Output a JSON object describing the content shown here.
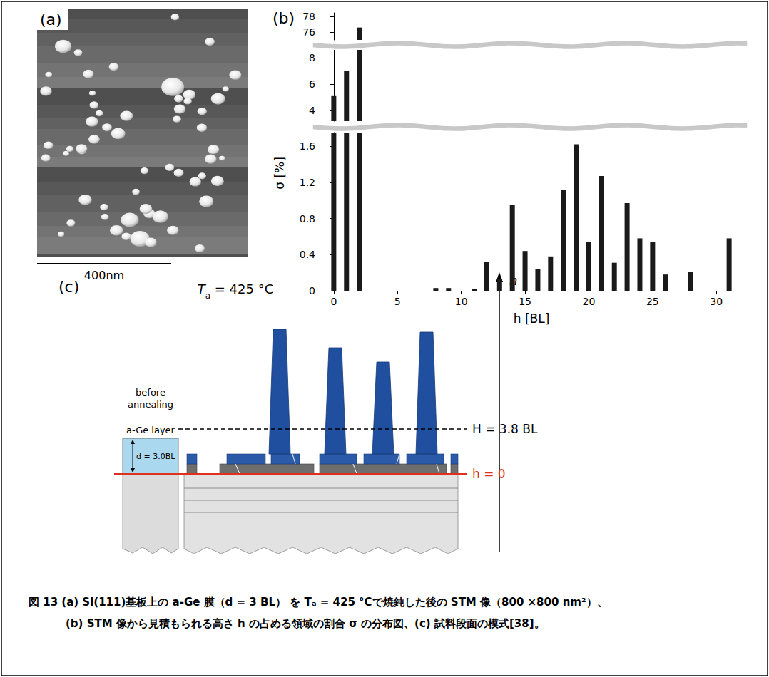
{
  "panel_a": {
    "label": "(a)",
    "scale_bar": "400nm"
  },
  "chart_data": {
    "type": "bar",
    "panel_label": "(b)",
    "xlabel": "h [BL]",
    "ylabel": "σ [%]",
    "x": [
      0,
      1,
      2,
      3,
      4,
      5,
      6,
      7,
      8,
      9,
      10,
      11,
      12,
      13,
      14,
      15,
      16,
      17,
      18,
      19,
      20,
      21,
      22,
      23,
      24,
      25,
      26,
      27,
      28,
      29,
      30,
      31
    ],
    "values": [
      5.1,
      7.0,
      76.6,
      0,
      0,
      0,
      0,
      0,
      0.03,
      0.03,
      0,
      0.02,
      0.32,
      0.13,
      0.95,
      0.44,
      0.24,
      0.38,
      1.12,
      1.62,
      0.54,
      1.27,
      0.31,
      0.97,
      0.58,
      0.54,
      0.18,
      0,
      0.21,
      0,
      0,
      0.58
    ],
    "color": "#1a1a1a",
    "xlim": [
      -1,
      32
    ],
    "xticks": [
      0,
      5,
      10,
      15,
      20,
      25,
      30
    ],
    "y_segments": [
      {
        "ylim": [
          0,
          1.75
        ],
        "yticks": [
          0,
          0.4,
          0.8,
          1.2,
          1.6
        ]
      },
      {
        "ylim": [
          3.2,
          8.6
        ],
        "yticks": [
          4,
          6,
          8
        ]
      },
      {
        "ylim": [
          75,
          78.5
        ],
        "yticks": [
          76,
          78
        ]
      }
    ],
    "grid": false
  },
  "panel_c": {
    "label": "(c)",
    "temperature": {
      "symbol": "T",
      "subscript": "a",
      "text": " = 425 °C"
    },
    "before_annealing": [
      "before",
      "annealing"
    ],
    "layer": "a-Ge layer",
    "thickness": "d = 3.0BL",
    "H_line": "H = 3.8 BL",
    "zero_line": "h = 0",
    "axis": "h"
  },
  "caption": {
    "lines": [
      "図 13 (a) Si(111)基板上の a-Ge 膜（d = 3 BL） を Tₐ = 425 °Cで焼鈍した後の STM 像（800 ×800 nm²）、",
      "(b) STM 像から見積もられる高さ h の占める領域の割合 σ の分布図、(c) 試料段面の模式[38]。"
    ]
  }
}
